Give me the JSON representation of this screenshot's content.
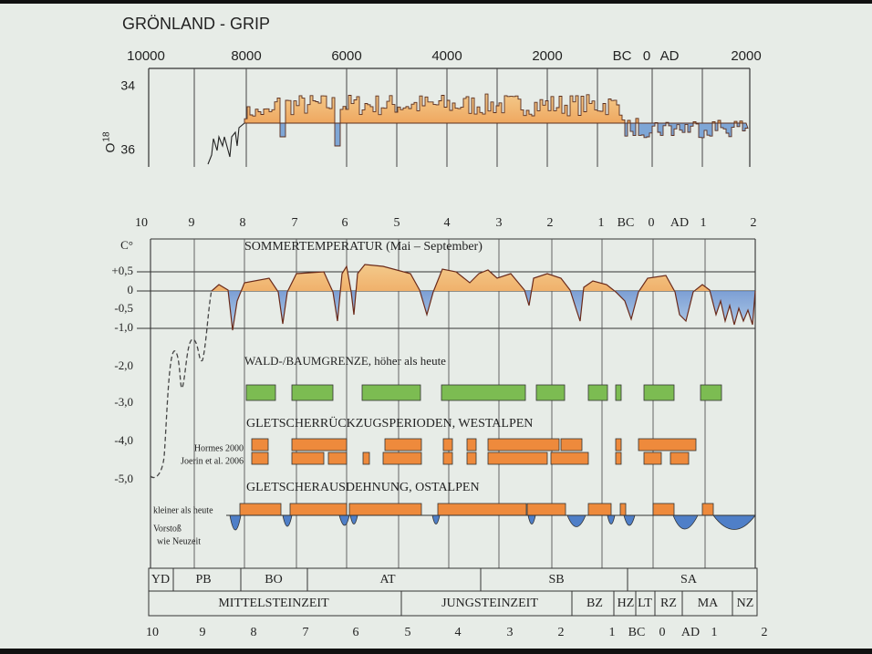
{
  "title": "GRÖNLAND - GRIP",
  "top_axis": {
    "x_labels": [
      "10000",
      "8000",
      "6000",
      "4000",
      "2000",
      "BC",
      "0",
      "AD",
      "2000"
    ],
    "y_labels": [
      "34",
      "36"
    ],
    "y_title": "O",
    "y_title_sup": "18"
  },
  "main": {
    "x_labels": [
      "10",
      "9",
      "8",
      "7",
      "6",
      "5",
      "4",
      "3",
      "2",
      "1",
      "BC",
      "0",
      "AD",
      "1",
      "2"
    ],
    "y_labels": [
      "C°",
      "+0,5",
      "0",
      "-0,5",
      "-1,0",
      "-2,0",
      "-3,0",
      "-4,0",
      "-5,0"
    ],
    "sections": [
      "SOMMERTEMPERATUR (Mai – September)",
      "WALD-/BAUMGRENZE, höher als heute",
      "GLETSCHERRÜCKZUGSPERIODEN, WESTALPEN",
      "GLETSCHERAUSDEHNUNG, OSTALPEN"
    ],
    "sources": [
      "Hormes 2000",
      "Joerin et al. 2006"
    ],
    "ostalpen_labels": [
      "kleiner als heute",
      "Vorstoß",
      "wie Neuzeit"
    ]
  },
  "periods": {
    "rows": [
      [
        "YD",
        "PB",
        "BO",
        "AT",
        "SB",
        "SA"
      ],
      [
        "MITTELSTEINZEIT",
        "JUNGSTEINZEIT",
        "BZ",
        "HZ",
        "LT",
        "RZ",
        "MA",
        "NZ"
      ]
    ]
  },
  "bottom_axis": {
    "x_labels": [
      "10",
      "9",
      "8",
      "7",
      "6",
      "5",
      "4",
      "3",
      "2",
      "1",
      "BC",
      "0",
      "AD",
      "1",
      "2"
    ]
  }
}
